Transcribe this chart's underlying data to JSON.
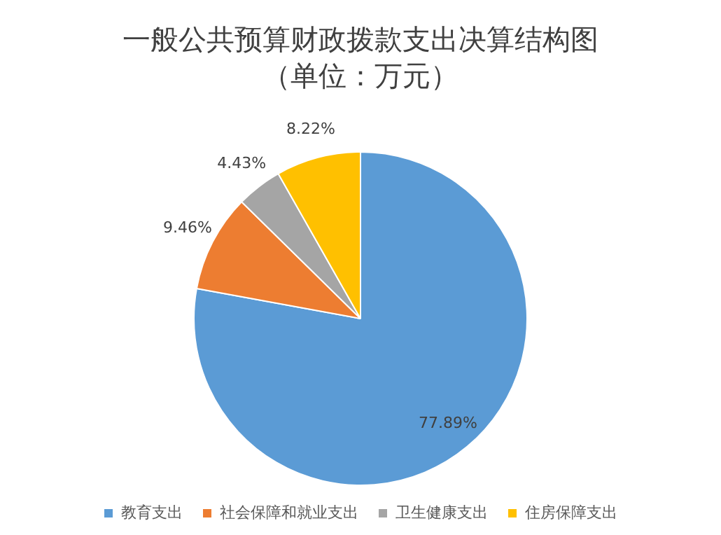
{
  "chart_data": {
    "type": "pie",
    "title": "一般公共预算财政拨款支出决算结构图",
    "subtitle": "（单位：万元）",
    "categories": [
      "教育支出",
      "社会保障和就业支出",
      "卫生健康支出",
      "住房保障支出"
    ],
    "values": [
      77.89,
      9.46,
      4.43,
      8.22
    ],
    "colors": [
      "#5b9bd5",
      "#ed7d31",
      "#a5a5a5",
      "#ffc000"
    ],
    "value_labels": [
      "77.89%",
      "9.46%",
      "4.43%",
      "8.22%"
    ],
    "legend": "bottom"
  }
}
